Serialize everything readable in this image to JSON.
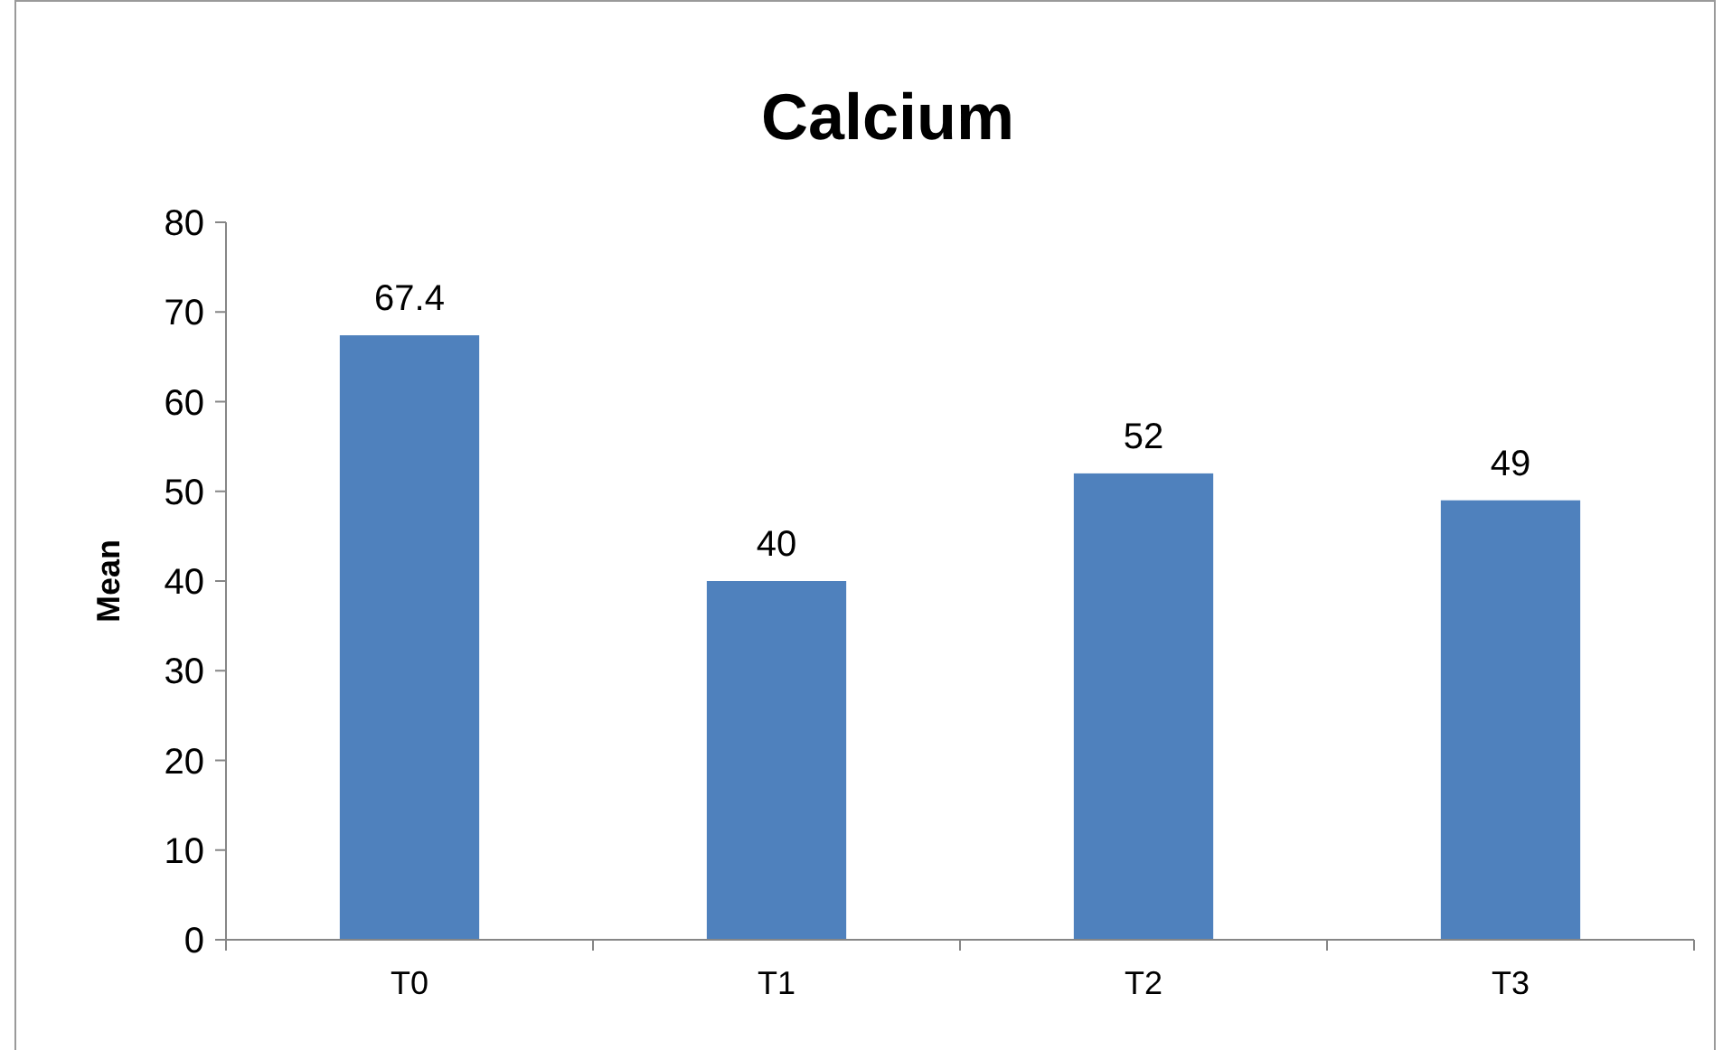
{
  "chart_data": {
    "type": "bar",
    "title": "Calcium",
    "ylabel": "Mean",
    "categories": [
      "T0",
      "T1",
      "T2",
      "T3"
    ],
    "values": [
      67.4,
      40,
      52,
      49
    ],
    "color": "#4f81bd",
    "ylim": [
      0,
      80
    ],
    "yticks": [
      0,
      10,
      20,
      30,
      40,
      50,
      60,
      70,
      80
    ],
    "data_labels": true,
    "grid": false
  }
}
